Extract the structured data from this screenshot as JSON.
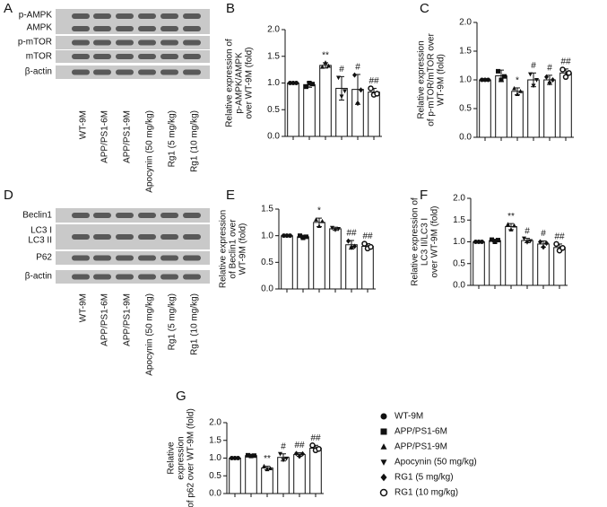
{
  "panels": [
    "A",
    "B",
    "C",
    "D",
    "E",
    "F",
    "G"
  ],
  "blot_a": {
    "rows": [
      "p-AMPK",
      "AMPK",
      "p-mTOR",
      "mTOR",
      "β-actin"
    ],
    "lanes": [
      "WT-9M",
      "APP/PS1-6M",
      "APP/PS1-9M",
      "Apocynin (50 mg/kg)",
      "Rg1 (5 mg/kg)",
      "Rg1 (10 mg/kg)"
    ]
  },
  "blot_d": {
    "rows": [
      "Beclin1",
      "LC3 I",
      "LC3 II",
      "P62",
      "β-actin"
    ],
    "lanes": [
      "WT-9M",
      "APP/PS1-6M",
      "APP/PS1-9M",
      "Apocynin (50 mg/kg)",
      "Rg1 (5 mg/kg)",
      "Rg1 (10 mg/kg)"
    ]
  },
  "legend": {
    "items": [
      {
        "name": "WT-9M",
        "marker": "circle"
      },
      {
        "name": "APP/PS1-6M",
        "marker": "square"
      },
      {
        "name": "APP/PS1-9M",
        "marker": "triangle"
      },
      {
        "name": "Apocynin (50 mg/kg)",
        "marker": "triangle-down"
      },
      {
        "name": "RG1 (5 mg/kg)",
        "marker": "diamond"
      },
      {
        "name": "RG1 (10 mg/kg)",
        "marker": "open-circle"
      }
    ]
  },
  "chart_data": [
    {
      "type": "bar",
      "ylabel": [
        "Relative expression of",
        "p-AMPK/AMPK",
        "over WT-9M (fold)"
      ],
      "categories": [
        null,
        null,
        null,
        null,
        null,
        null
      ],
      "values": [
        1.0,
        0.97,
        1.33,
        0.9,
        0.88,
        0.83
      ],
      "errors": [
        0,
        0.05,
        0.05,
        0.22,
        0.28,
        0.07
      ],
      "points": [
        [
          1,
          1,
          1
        ],
        [
          0.93,
          1.0,
          0.98
        ],
        [
          1.3,
          1.38,
          1.32
        ],
        [
          1.1,
          0.75,
          0.85
        ],
        [
          1.15,
          0.62,
          0.87
        ],
        [
          0.9,
          0.78,
          0.8
        ]
      ],
      "annotations": [
        null,
        null,
        "**",
        "#",
        "#",
        "##"
      ],
      "color": "#ffffff",
      "ylim": [
        0,
        2
      ],
      "yticks": [
        {
          "value": 0,
          "label": "0.0"
        },
        {
          "value": 0.5,
          "label": "0.5"
        },
        {
          "value": 1,
          "label": "1.0"
        },
        {
          "value": 1.5,
          "label": "1.5"
        },
        {
          "value": 2,
          "label": "2.0"
        }
      ]
    },
    {
      "type": "bar",
      "ylabel": [
        "Relative expression",
        "of p-mTOR/mTOR over",
        "WT-9M (fold)"
      ],
      "categories": [
        null,
        null,
        null,
        null,
        null,
        null
      ],
      "values": [
        1.0,
        1.07,
        0.8,
        1.0,
        1.0,
        1.12
      ],
      "errors": [
        0,
        0.1,
        0.06,
        0.12,
        0.08,
        0.07
      ],
      "points": [
        [
          1,
          1,
          1
        ],
        [
          1.15,
          1.0,
          1.06
        ],
        [
          0.85,
          0.75,
          0.8
        ],
        [
          1.1,
          0.9,
          1.0
        ],
        [
          1.05,
          0.95,
          1.0
        ],
        [
          1.18,
          1.05,
          1.12
        ]
      ],
      "annotations": [
        null,
        null,
        "*",
        "#",
        "#",
        "##"
      ],
      "color": "#ffffff",
      "ylim": [
        0,
        2
      ],
      "yticks": [
        {
          "value": 0,
          "label": "0.0"
        },
        {
          "value": 0.5,
          "label": "0.5"
        },
        {
          "value": 1,
          "label": "1.0"
        },
        {
          "value": 1.5,
          "label": "1.5"
        },
        {
          "value": 2,
          "label": "2.0"
        }
      ]
    },
    {
      "type": "bar",
      "ylabel": [
        "Relative expression",
        "of Beclin1 over",
        "WT-9M (fold)"
      ],
      "categories": [
        null,
        null,
        null,
        null,
        null,
        null
      ],
      "values": [
        1.0,
        0.98,
        1.25,
        1.13,
        0.83,
        0.8
      ],
      "errors": [
        0,
        0.03,
        0.08,
        0.03,
        0.08,
        0.05
      ],
      "points": [
        [
          1,
          1,
          1
        ],
        [
          1.0,
          0.96,
          0.98
        ],
        [
          1.3,
          1.18,
          1.27
        ],
        [
          1.15,
          1.11,
          1.13
        ],
        [
          0.9,
          0.78,
          0.8
        ],
        [
          0.85,
          0.76,
          0.79
        ]
      ],
      "annotations": [
        null,
        null,
        "*",
        null,
        "##",
        "##"
      ],
      "color": "#ffffff",
      "ylim": [
        0,
        1.5
      ],
      "yticks": [
        {
          "value": 0,
          "label": "0.0"
        },
        {
          "value": 0.5,
          "label": "0.5"
        },
        {
          "value": 1,
          "label": "1.0"
        },
        {
          "value": 1.5,
          "label": "1.5"
        }
      ]
    },
    {
      "type": "bar",
      "ylabel": [
        "Relative expression of",
        "LC3 II/LC3 I",
        "over WT-9M (fold)"
      ],
      "categories": [
        null,
        null,
        null,
        null,
        null,
        null
      ],
      "values": [
        1.0,
        1.03,
        1.35,
        1.03,
        0.95,
        0.87
      ],
      "errors": [
        0,
        0.03,
        0.07,
        0.05,
        0.07,
        0.08
      ],
      "points": [
        [
          1,
          1,
          1
        ],
        [
          1.05,
          1.0,
          1.04
        ],
        [
          1.4,
          1.28,
          1.37
        ],
        [
          1.08,
          0.99,
          1.02
        ],
        [
          1.0,
          0.88,
          0.97
        ],
        [
          0.95,
          0.8,
          0.86
        ]
      ],
      "annotations": [
        null,
        null,
        "**",
        "#",
        "#",
        "##"
      ],
      "color": "#ffffff",
      "ylim": [
        0,
        2
      ],
      "yticks": [
        {
          "value": 0,
          "label": "0.0"
        },
        {
          "value": 0.5,
          "label": "0.5"
        },
        {
          "value": 1,
          "label": "1.0"
        },
        {
          "value": 1.5,
          "label": "1.5"
        },
        {
          "value": 2,
          "label": "2.0"
        }
      ]
    },
    {
      "type": "bar",
      "ylabel": [
        "Relative",
        "expression",
        "of p62 over WT-9M (fold)"
      ],
      "categories": [
        null,
        null,
        null,
        null,
        null,
        null
      ],
      "values": [
        1.0,
        1.07,
        0.72,
        1.02,
        1.1,
        1.28
      ],
      "errors": [
        0,
        0.02,
        0.05,
        0.1,
        0.05,
        0.08
      ],
      "points": [
        [
          1,
          1,
          1
        ],
        [
          1.08,
          1.06,
          1.07
        ],
        [
          0.77,
          0.68,
          0.71
        ],
        [
          1.12,
          0.95,
          0.99
        ],
        [
          1.13,
          1.05,
          1.12
        ],
        [
          1.36,
          1.22,
          1.26
        ]
      ],
      "annotations": [
        null,
        null,
        "**",
        "#",
        "##",
        "##"
      ],
      "color": "#ffffff",
      "ylim": [
        0,
        2
      ],
      "yticks": [
        {
          "value": 0,
          "label": "0.0"
        },
        {
          "value": 0.5,
          "label": "0.5"
        },
        {
          "value": 1,
          "label": "1.0"
        },
        {
          "value": 1.5,
          "label": "1.5"
        },
        {
          "value": 2,
          "label": "2.0"
        }
      ]
    }
  ]
}
